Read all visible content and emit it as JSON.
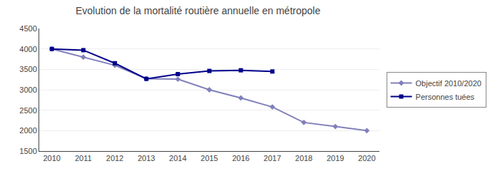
{
  "chart_data": {
    "type": "line",
    "title": "Evolution de la mortalité routière annuelle en métropole",
    "x": [
      2010,
      2011,
      2012,
      2013,
      2014,
      2015,
      2016,
      2017,
      2018,
      2019,
      2020
    ],
    "series": [
      {
        "name": "Objectif 2010/2020",
        "color": "#8080bb",
        "marker": "diamond",
        "values": [
          4000,
          3800,
          3600,
          3270,
          3260,
          3000,
          2800,
          2580,
          2200,
          2100,
          2000
        ]
      },
      {
        "name": "Personnes tuées",
        "color": "#00008B",
        "marker": "square",
        "values": [
          4000,
          3970,
          3650,
          3268,
          3384,
          3461,
          3477,
          3448,
          null,
          null,
          null
        ]
      }
    ],
    "xlim": [
      2009.6,
      2020.4
    ],
    "xticks": [
      2010,
      2011,
      2012,
      2013,
      2014,
      2015,
      2016,
      2017,
      2018,
      2019,
      2020
    ],
    "ylim": [
      1500,
      4500
    ],
    "yticks": [
      1500,
      2000,
      2500,
      3000,
      3500,
      4000,
      4500
    ],
    "grid": "y",
    "legend": "right"
  }
}
